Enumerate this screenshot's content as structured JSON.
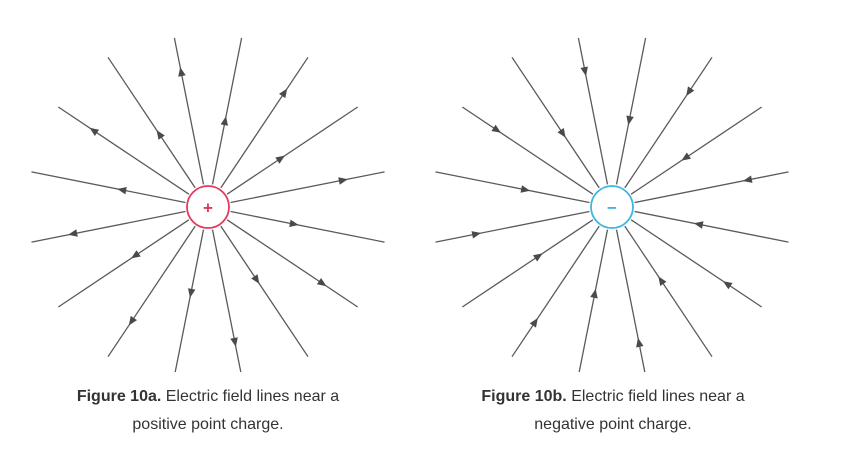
{
  "figures": [
    {
      "id": "a",
      "label": "Figure 10a.",
      "caption_line1": " Electric field lines near a",
      "caption_line2": "positive point charge.",
      "charge_sign": "+",
      "direction": "outward",
      "charge_color": "#e23a5c",
      "line_count": 16
    },
    {
      "id": "b",
      "label": "Figure 10b.",
      "caption_line1": " Electric field lines near a",
      "caption_line2": "negative point charge.",
      "charge_sign": "−",
      "direction": "inward",
      "charge_color": "#3fb6e0",
      "line_count": 16
    }
  ],
  "colors": {
    "field_line": "#5a5a5a",
    "arrow": "#4a4a4a",
    "caption_text": "#333333"
  }
}
